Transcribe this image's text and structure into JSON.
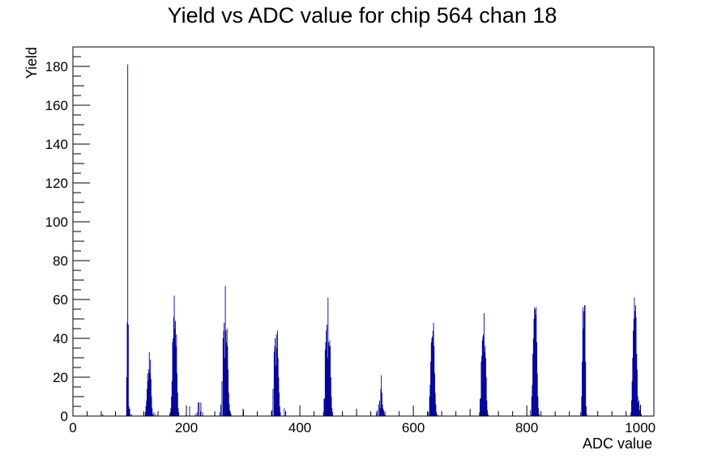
{
  "chart_data": {
    "type": "bar",
    "title": "Yield vs ADC value for chip 564 chan 18",
    "xlabel": "ADC value",
    "ylabel": "Yield",
    "xlim": [
      0,
      1024
    ],
    "ylim": [
      0,
      190
    ],
    "x_ticks": [
      0,
      200,
      400,
      600,
      800,
      1000
    ],
    "y_ticks": [
      0,
      20,
      40,
      60,
      80,
      100,
      120,
      140,
      160,
      180
    ],
    "grid": false,
    "legend": "none",
    "bin_width": 1,
    "bar_color": "#000099",
    "series": [
      {
        "points": [
          [
            52,
            1
          ],
          [
            94,
            20
          ],
          [
            95,
            48
          ],
          [
            96,
            181
          ],
          [
            97,
            47
          ],
          [
            98,
            5
          ],
          [
            100,
            1
          ],
          [
            103,
            1
          ],
          [
            127,
            2
          ],
          [
            128,
            5
          ],
          [
            129,
            8
          ],
          [
            130,
            14
          ],
          [
            131,
            22
          ],
          [
            132,
            18
          ],
          [
            133,
            24
          ],
          [
            134,
            33
          ],
          [
            135,
            22
          ],
          [
            136,
            29
          ],
          [
            137,
            19
          ],
          [
            138,
            10
          ],
          [
            139,
            4
          ],
          [
            140,
            1
          ],
          [
            142,
            2
          ],
          [
            145,
            1
          ],
          [
            170,
            1
          ],
          [
            171,
            2
          ],
          [
            172,
            4
          ],
          [
            173,
            10
          ],
          [
            174,
            18
          ],
          [
            175,
            38
          ],
          [
            176,
            40
          ],
          [
            177,
            51
          ],
          [
            178,
            62
          ],
          [
            179,
            45
          ],
          [
            180,
            49
          ],
          [
            181,
            36
          ],
          [
            182,
            42
          ],
          [
            183,
            22
          ],
          [
            184,
            12
          ],
          [
            185,
            4
          ],
          [
            186,
            2
          ],
          [
            199,
            1
          ],
          [
            205,
            5
          ],
          [
            215,
            1
          ],
          [
            218,
            2
          ],
          [
            220,
            7
          ],
          [
            222,
            7
          ],
          [
            225,
            7
          ],
          [
            228,
            2
          ],
          [
            258,
            2
          ],
          [
            260,
            6
          ],
          [
            262,
            18
          ],
          [
            264,
            40
          ],
          [
            265,
            44
          ],
          [
            266,
            48
          ],
          [
            267,
            30
          ],
          [
            268,
            67
          ],
          [
            269,
            44
          ],
          [
            270,
            38
          ],
          [
            271,
            45
          ],
          [
            272,
            36
          ],
          [
            273,
            24
          ],
          [
            274,
            12
          ],
          [
            275,
            6
          ],
          [
            276,
            3
          ],
          [
            277,
            2
          ],
          [
            278,
            1
          ],
          [
            300,
            3
          ],
          [
            350,
            3
          ],
          [
            352,
            14
          ],
          [
            354,
            33
          ],
          [
            355,
            36
          ],
          [
            356,
            40
          ],
          [
            357,
            26
          ],
          [
            358,
            42
          ],
          [
            359,
            35
          ],
          [
            360,
            44
          ],
          [
            361,
            30
          ],
          [
            362,
            20
          ],
          [
            363,
            12
          ],
          [
            364,
            5
          ],
          [
            365,
            2
          ],
          [
            372,
            4
          ],
          [
            441,
            2
          ],
          [
            442,
            9
          ],
          [
            443,
            9
          ],
          [
            444,
            34
          ],
          [
            445,
            38
          ],
          [
            446,
            44
          ],
          [
            447,
            47
          ],
          [
            448,
            30
          ],
          [
            449,
            61
          ],
          [
            450,
            38
          ],
          [
            451,
            36
          ],
          [
            452,
            39
          ],
          [
            453,
            36
          ],
          [
            454,
            20
          ],
          [
            455,
            10
          ],
          [
            456,
            4
          ],
          [
            457,
            2
          ],
          [
            534,
            2
          ],
          [
            536,
            3
          ],
          [
            538,
            6
          ],
          [
            540,
            8
          ],
          [
            541,
            4
          ],
          [
            542,
            14
          ],
          [
            543,
            21
          ],
          [
            544,
            12
          ],
          [
            545,
            6
          ],
          [
            546,
            4
          ],
          [
            547,
            3
          ],
          [
            548,
            1
          ],
          [
            626,
            2
          ],
          [
            628,
            10
          ],
          [
            629,
            16
          ],
          [
            630,
            28
          ],
          [
            631,
            38
          ],
          [
            632,
            40
          ],
          [
            633,
            41
          ],
          [
            634,
            44
          ],
          [
            635,
            48
          ],
          [
            636,
            36
          ],
          [
            637,
            22
          ],
          [
            638,
            12
          ],
          [
            639,
            6
          ],
          [
            640,
            2
          ],
          [
            642,
            1
          ],
          [
            716,
            2
          ],
          [
            717,
            9
          ],
          [
            718,
            9
          ],
          [
            719,
            28
          ],
          [
            720,
            31
          ],
          [
            721,
            39
          ],
          [
            722,
            41
          ],
          [
            723,
            42
          ],
          [
            724,
            53
          ],
          [
            725,
            33
          ],
          [
            726,
            36
          ],
          [
            727,
            30
          ],
          [
            728,
            20
          ],
          [
            729,
            8
          ],
          [
            730,
            3
          ],
          [
            731,
            1
          ],
          [
            806,
            3
          ],
          [
            808,
            10
          ],
          [
            809,
            16
          ],
          [
            810,
            32
          ],
          [
            811,
            40
          ],
          [
            812,
            50
          ],
          [
            813,
            56
          ],
          [
            814,
            55
          ],
          [
            815,
            52
          ],
          [
            816,
            56
          ],
          [
            817,
            38
          ],
          [
            818,
            22
          ],
          [
            819,
            10
          ],
          [
            820,
            4
          ],
          [
            821,
            1
          ],
          [
            894,
            2
          ],
          [
            896,
            10
          ],
          [
            897,
            28
          ],
          [
            898,
            56
          ],
          [
            899,
            45
          ],
          [
            900,
            54
          ],
          [
            901,
            57
          ],
          [
            902,
            57
          ],
          [
            903,
            28
          ],
          [
            904,
            5
          ],
          [
            905,
            1
          ],
          [
            983,
            2
          ],
          [
            984,
            8
          ],
          [
            985,
            18
          ],
          [
            986,
            30
          ],
          [
            987,
            44
          ],
          [
            988,
            50
          ],
          [
            989,
            61
          ],
          [
            990,
            54
          ],
          [
            991,
            57
          ],
          [
            992,
            51
          ],
          [
            993,
            32
          ],
          [
            994,
            24
          ],
          [
            995,
            10
          ],
          [
            996,
            7
          ],
          [
            997,
            8
          ],
          [
            998,
            3
          ],
          [
            1000,
            6
          ],
          [
            1001,
            1
          ]
        ]
      }
    ]
  }
}
